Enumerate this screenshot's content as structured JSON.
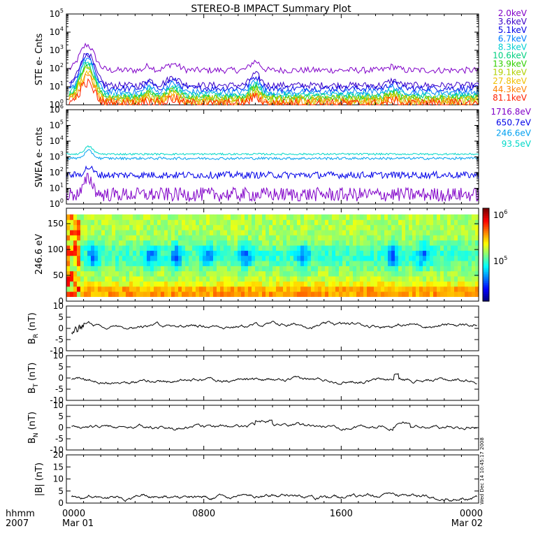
{
  "title": "STEREO-B IMPACT Summary Plot",
  "time_axis": {
    "label_line1": "hhmm",
    "label_line2": "2007",
    "ticks": [
      {
        "time": "0000",
        "date": "Mar 01",
        "hour": 0
      },
      {
        "time": "0800",
        "date": "",
        "hour": 8
      },
      {
        "time": "1600",
        "date": "",
        "hour": 16
      },
      {
        "time": "0000",
        "date": "Mar 02",
        "hour": 24
      }
    ],
    "range_hours": [
      0,
      24
    ]
  },
  "side_stamp": "Wed Dec 14 10:45:17 2008",
  "chart_data": [
    {
      "id": "ste",
      "type": "line",
      "ylabel": "STE e- Cnts",
      "yscale": "log",
      "ylim": [
        1,
        100000
      ],
      "ytick_exponents": [
        0,
        1,
        2,
        3,
        4,
        5
      ],
      "x_unit": "hours",
      "series": [
        {
          "name": "2.0keV",
          "color": "#8000c8",
          "baseline": 80,
          "peak": 2000
        },
        {
          "name": "3.6keV",
          "color": "#3a00c8",
          "baseline": 12,
          "peak": 700
        },
        {
          "name": "5.1keV",
          "color": "#0000e8",
          "baseline": 8,
          "peak": 500
        },
        {
          "name": "6.7keV",
          "color": "#0080ff",
          "baseline": 5,
          "peak": 350
        },
        {
          "name": "8.3keV",
          "color": "#00d0d0",
          "baseline": 3.5,
          "peak": 250
        },
        {
          "name": "10.6keV",
          "color": "#00d080",
          "baseline": 2.8,
          "peak": 180
        },
        {
          "name": "13.9keV",
          "color": "#30d000",
          "baseline": 2.3,
          "peak": 120
        },
        {
          "name": "19.1keV",
          "color": "#b0d000",
          "baseline": 1.9,
          "peak": 80
        },
        {
          "name": "27.8keV",
          "color": "#f0c000",
          "baseline": 1.6,
          "peak": 50
        },
        {
          "name": "44.3keV",
          "color": "#ff8000",
          "baseline": 1.3,
          "peak": 30
        },
        {
          "name": "81.1keV",
          "color": "#ff2000",
          "baseline": 1.1,
          "peak": 15
        }
      ]
    },
    {
      "id": "swea",
      "type": "line",
      "ylabel": "SWEA e- cnts",
      "yscale": "log",
      "ylim": [
        1,
        1000000
      ],
      "ytick_exponents": [
        0,
        1,
        2,
        3,
        4,
        5,
        6
      ],
      "x_unit": "hours",
      "series": [
        {
          "name": "1716.8eV",
          "color": "#8000c8",
          "baseline": 4
        },
        {
          "name": "650.7eV",
          "color": "#0000e8",
          "baseline": 70
        },
        {
          "name": "246.6eV",
          "color": "#00a0f0",
          "baseline": 800
        },
        {
          "name": "93.5eV",
          "color": "#00d8c8",
          "baseline": 1500
        }
      ]
    },
    {
      "id": "pad",
      "type": "heatmap",
      "ylabel": "246.6 eV",
      "ylim": [
        0,
        180
      ],
      "yticks": [
        0,
        50,
        100,
        150
      ],
      "colorbar": {
        "ticks": [
          {
            "mantissa": "10",
            "exp": "5"
          },
          {
            "mantissa": "10",
            "exp": "6"
          }
        ]
      },
      "x_unit": "hours"
    },
    {
      "id": "br",
      "type": "line",
      "ylabel": "B",
      "ylabel_sub": "R",
      "ylabel_unit": "(nT)",
      "ylim": [
        -10,
        10
      ],
      "yticks": [
        -10,
        -5,
        0,
        5,
        10
      ],
      "x_unit": "hours",
      "series": [
        {
          "color": "#000000",
          "baseline": 1.5
        }
      ]
    },
    {
      "id": "bt",
      "type": "line",
      "ylabel": "B",
      "ylabel_sub": "T",
      "ylabel_unit": "(nT)",
      "ylim": [
        -10,
        10
      ],
      "yticks": [
        -10,
        -5,
        0,
        5,
        10
      ],
      "x_unit": "hours",
      "series": [
        {
          "color": "#000000",
          "baseline": -1
        }
      ]
    },
    {
      "id": "bn",
      "type": "line",
      "ylabel": "B",
      "ylabel_sub": "N",
      "ylabel_unit": "(nT)",
      "ylim": [
        -10,
        10
      ],
      "yticks": [
        -10,
        -5,
        0,
        5,
        10
      ],
      "x_unit": "hours",
      "series": [
        {
          "color": "#000000",
          "baseline": 0.5
        }
      ]
    },
    {
      "id": "bmag",
      "type": "line",
      "ylabel": "|B| (nT)",
      "ylim": [
        0,
        20
      ],
      "yticks": [
        0,
        5,
        10,
        15,
        20
      ],
      "x_unit": "hours",
      "series": [
        {
          "color": "#000000",
          "baseline": 2.5
        }
      ]
    }
  ]
}
